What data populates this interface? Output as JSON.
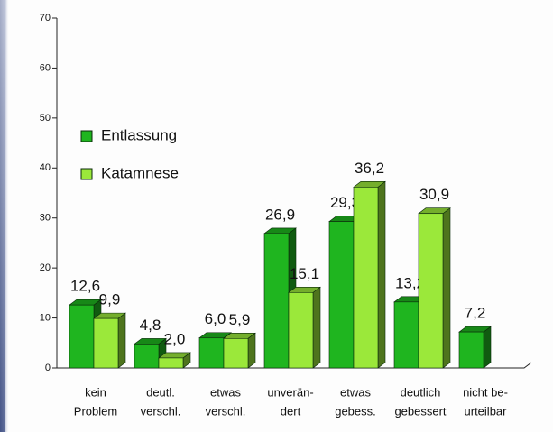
{
  "chart_data": {
    "type": "bar",
    "categories": [
      [
        "kein",
        "Problem"
      ],
      [
        "deutl.",
        "verschl."
      ],
      [
        "etwas",
        "verschl."
      ],
      [
        "unverän-",
        "dert"
      ],
      [
        "etwas",
        "gebess."
      ],
      [
        "deutlich",
        "gebessert"
      ],
      [
        "nicht be-",
        "urteilbar"
      ]
    ],
    "series": [
      {
        "name": "Entlassung",
        "color": "#1fb51f",
        "values": [
          12.6,
          4.8,
          6.0,
          26.9,
          29.3,
          13.2,
          7.2
        ],
        "value_labels": [
          "12,6",
          "4,8",
          "6,0",
          "26,9",
          "29,3",
          "13,2",
          "7,2"
        ]
      },
      {
        "name": "Katamnese",
        "color": "#9be83a",
        "values": [
          9.9,
          2.0,
          5.9,
          15.1,
          36.2,
          30.9,
          null
        ],
        "value_labels": [
          "9,9",
          "2,0",
          "5,9",
          "15,1",
          "36,2",
          "30,9",
          null
        ]
      }
    ],
    "ylim": [
      0,
      70
    ],
    "yticks": [
      0,
      10,
      20,
      30,
      40,
      50,
      60,
      70
    ],
    "legend": "upper left"
  }
}
